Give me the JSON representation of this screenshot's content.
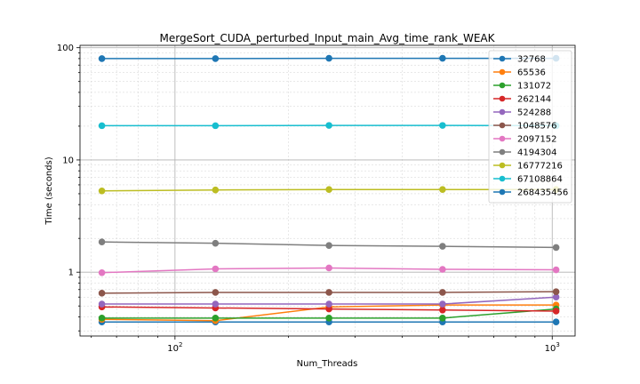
{
  "chart_data": {
    "type": "line",
    "title": "MergeSort_CUDA_perturbed_Input_main_Avg_time_rank_WEAK",
    "xlabel": "Num_Threads",
    "ylabel": "Time (seconds)",
    "xscale": "log",
    "yscale": "log",
    "xlim": [
      56,
      1150
    ],
    "ylim": [
      0.27,
      105
    ],
    "grid": true,
    "legend_position": "top-right",
    "x": [
      64,
      128,
      256,
      512,
      1024
    ],
    "x_ticks": [
      {
        "value": 100,
        "label": "10^2"
      },
      {
        "value": 1000,
        "label": "10^3"
      }
    ],
    "y_ticks": [
      {
        "value": 1,
        "label": "1"
      },
      {
        "value": 10,
        "label": "10"
      },
      {
        "value": 100,
        "label": "100"
      }
    ],
    "series": [
      {
        "name": "32768",
        "color": "#1f77b4",
        "values": [
          0.36,
          0.36,
          0.36,
          0.36,
          0.36
        ]
      },
      {
        "name": "65536",
        "color": "#ff7f0e",
        "values": [
          0.38,
          0.37,
          0.49,
          0.51,
          0.51
        ]
      },
      {
        "name": "131072",
        "color": "#2ca02c",
        "values": [
          0.39,
          0.39,
          0.39,
          0.39,
          0.47
        ]
      },
      {
        "name": "262144",
        "color": "#d62728",
        "values": [
          0.49,
          0.48,
          0.47,
          0.46,
          0.45
        ]
      },
      {
        "name": "524288",
        "color": "#9467bd",
        "values": [
          0.52,
          0.52,
          0.52,
          0.52,
          0.6
        ]
      },
      {
        "name": "1048576",
        "color": "#8c564b",
        "values": [
          0.65,
          0.66,
          0.66,
          0.66,
          0.67
        ]
      },
      {
        "name": "2097152",
        "color": "#e377c2",
        "values": [
          0.99,
          1.07,
          1.09,
          1.06,
          1.05
        ]
      },
      {
        "name": "4194304",
        "color": "#7f7f7f",
        "values": [
          1.86,
          1.81,
          1.73,
          1.7,
          1.66
        ]
      },
      {
        "name": "16777216",
        "color": "#bcbd22",
        "values": [
          5.3,
          5.4,
          5.45,
          5.45,
          5.45
        ]
      },
      {
        "name": "67108864",
        "color": "#17becf",
        "values": [
          20.2,
          20.2,
          20.3,
          20.3,
          20.2
        ]
      },
      {
        "name": "268435456",
        "color": "#1f77b4",
        "values": [
          80.0,
          80.0,
          80.5,
          80.5,
          80.5
        ]
      }
    ]
  }
}
